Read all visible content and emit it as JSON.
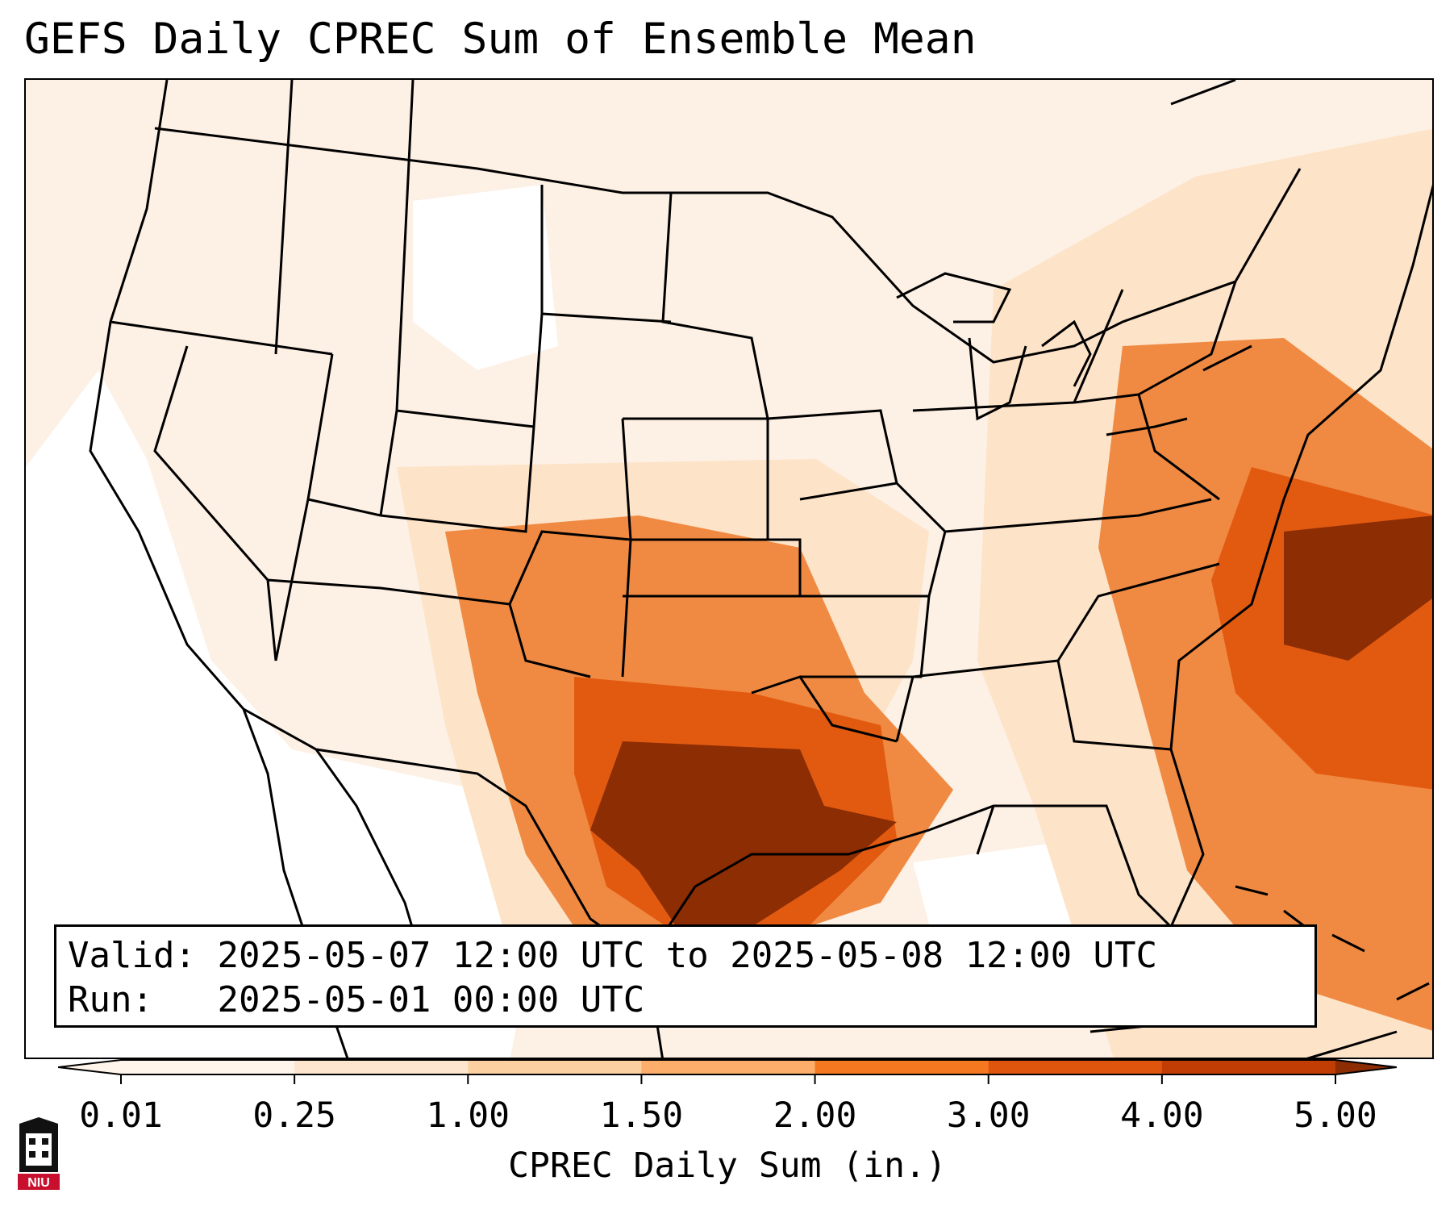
{
  "title": "GEFS Daily CPREC Sum of Ensemble Mean",
  "info": {
    "valid_label": "Valid:",
    "valid_value": "2025-05-07 12:00 UTC to 2025-05-08 12:00 UTC",
    "run_label": "Run:",
    "run_value": "2025-05-01 00:00 UTC"
  },
  "colorbar": {
    "label": "CPREC Daily Sum (in.)",
    "ticks": [
      "0.01",
      "0.25",
      "1.00",
      "1.50",
      "2.00",
      "3.00",
      "4.00",
      "5.00"
    ],
    "colors": [
      "#fff5eb",
      "#fee6ce",
      "#fdd0a2",
      "#fdae6b",
      "#f3781f",
      "#e0550e",
      "#c23d04",
      "#8c2d04"
    ],
    "extend": "both"
  },
  "map_colors": {
    "background": "#fdf0e4",
    "white_zone": "#ffffff",
    "light": "#fde3c8",
    "orange": "#f08a42",
    "dark_orange": "#e25a10",
    "darkest": "#8c2d04",
    "boundaries": "#000000"
  },
  "logo": {
    "text": "NIU",
    "color": "#c8102e"
  }
}
